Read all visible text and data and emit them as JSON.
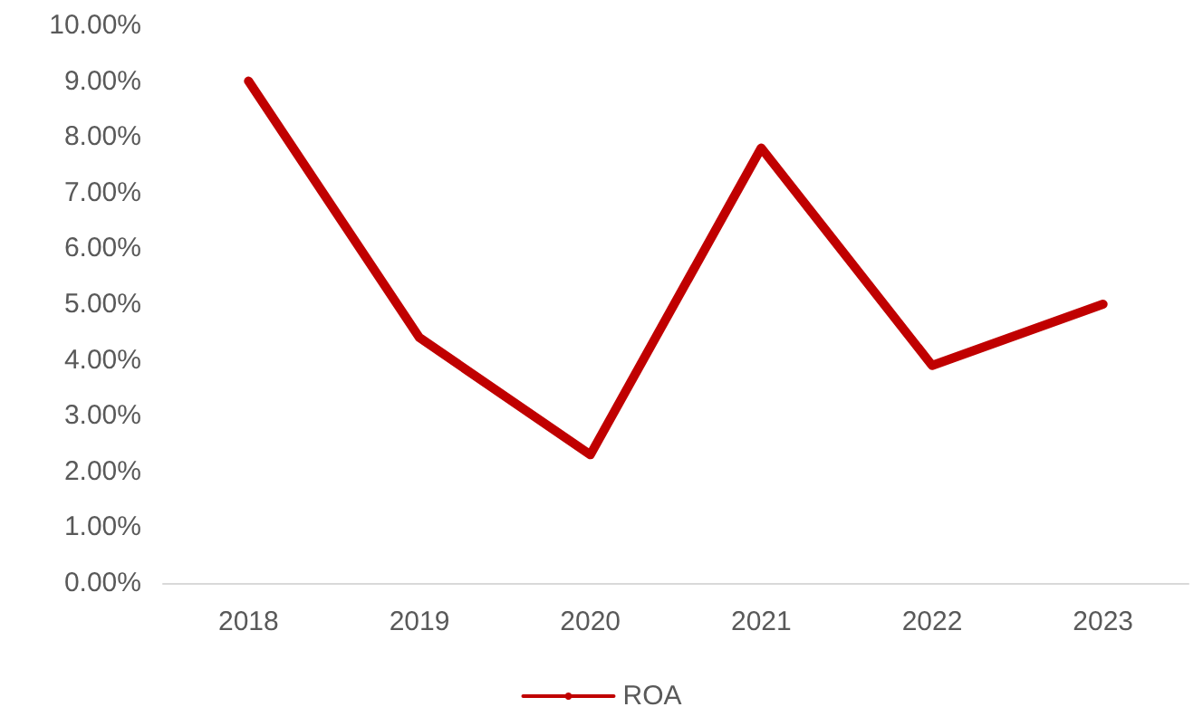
{
  "chart_data": {
    "type": "line",
    "categories": [
      "2018",
      "2019",
      "2020",
      "2021",
      "2022",
      "2023"
    ],
    "series": [
      {
        "name": "ROA",
        "color": "#c00000",
        "values": [
          9.0,
          4.4,
          2.3,
          7.8,
          3.9,
          5.0
        ]
      }
    ],
    "ylim": [
      0,
      10
    ],
    "yticks": [
      {
        "value": 0,
        "label": "0.00%"
      },
      {
        "value": 1,
        "label": "1.00%"
      },
      {
        "value": 2,
        "label": "2.00%"
      },
      {
        "value": 3,
        "label": "3.00%"
      },
      {
        "value": 4,
        "label": "4.00%"
      },
      {
        "value": 5,
        "label": "5.00%"
      },
      {
        "value": 6,
        "label": "6.00%"
      },
      {
        "value": 7,
        "label": "7.00%"
      },
      {
        "value": 8,
        "label": "8.00%"
      },
      {
        "value": 9,
        "label": "9.00%"
      },
      {
        "value": 10,
        "label": "10.00%"
      }
    ],
    "grid": false,
    "legend": "bottom",
    "marker": "none",
    "line_style": "solid"
  }
}
